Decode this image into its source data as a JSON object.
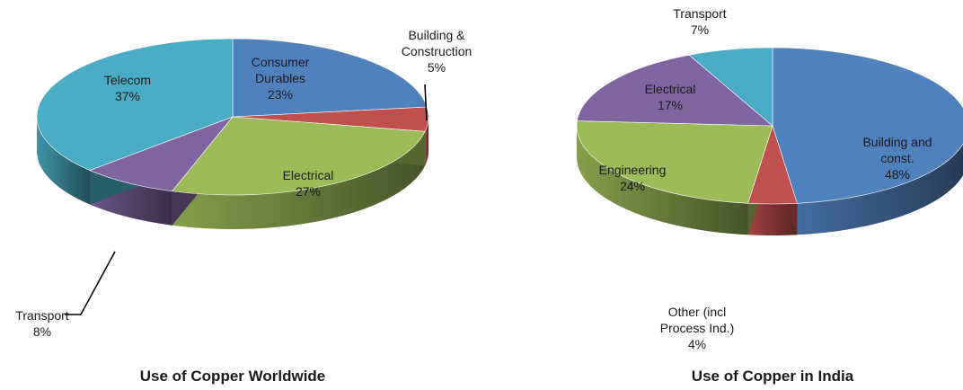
{
  "chart_data": [
    {
      "type": "pie",
      "title": "Use of Copper Worldwide",
      "categories": [
        "Consumer Durables",
        "Building & Construction",
        "Electrical",
        "Transport",
        "Telecom"
      ],
      "values": [
        23,
        5,
        27,
        8,
        37
      ],
      "value_labels": [
        "23%",
        "5%",
        "27%",
        "8%",
        "37%"
      ],
      "colors": [
        "#4F81BD",
        "#C0504D",
        "#9BBB59",
        "#8064A2",
        "#4BACC6"
      ],
      "style": "3d",
      "legend": "none"
    },
    {
      "type": "pie",
      "title": "Use of Copper in India",
      "categories": [
        "Building and const.",
        "Other (incl Process Ind.)",
        "Engineering",
        "Electrical",
        "Transport"
      ],
      "values": [
        48,
        4,
        24,
        17,
        7
      ],
      "value_labels": [
        "48%",
        "4%",
        "24%",
        "17%",
        "7%"
      ],
      "colors": [
        "#4F81BD",
        "#C0504D",
        "#9BBB59",
        "#8064A2",
        "#4BACC6"
      ],
      "style": "3d",
      "legend": "none"
    }
  ]
}
